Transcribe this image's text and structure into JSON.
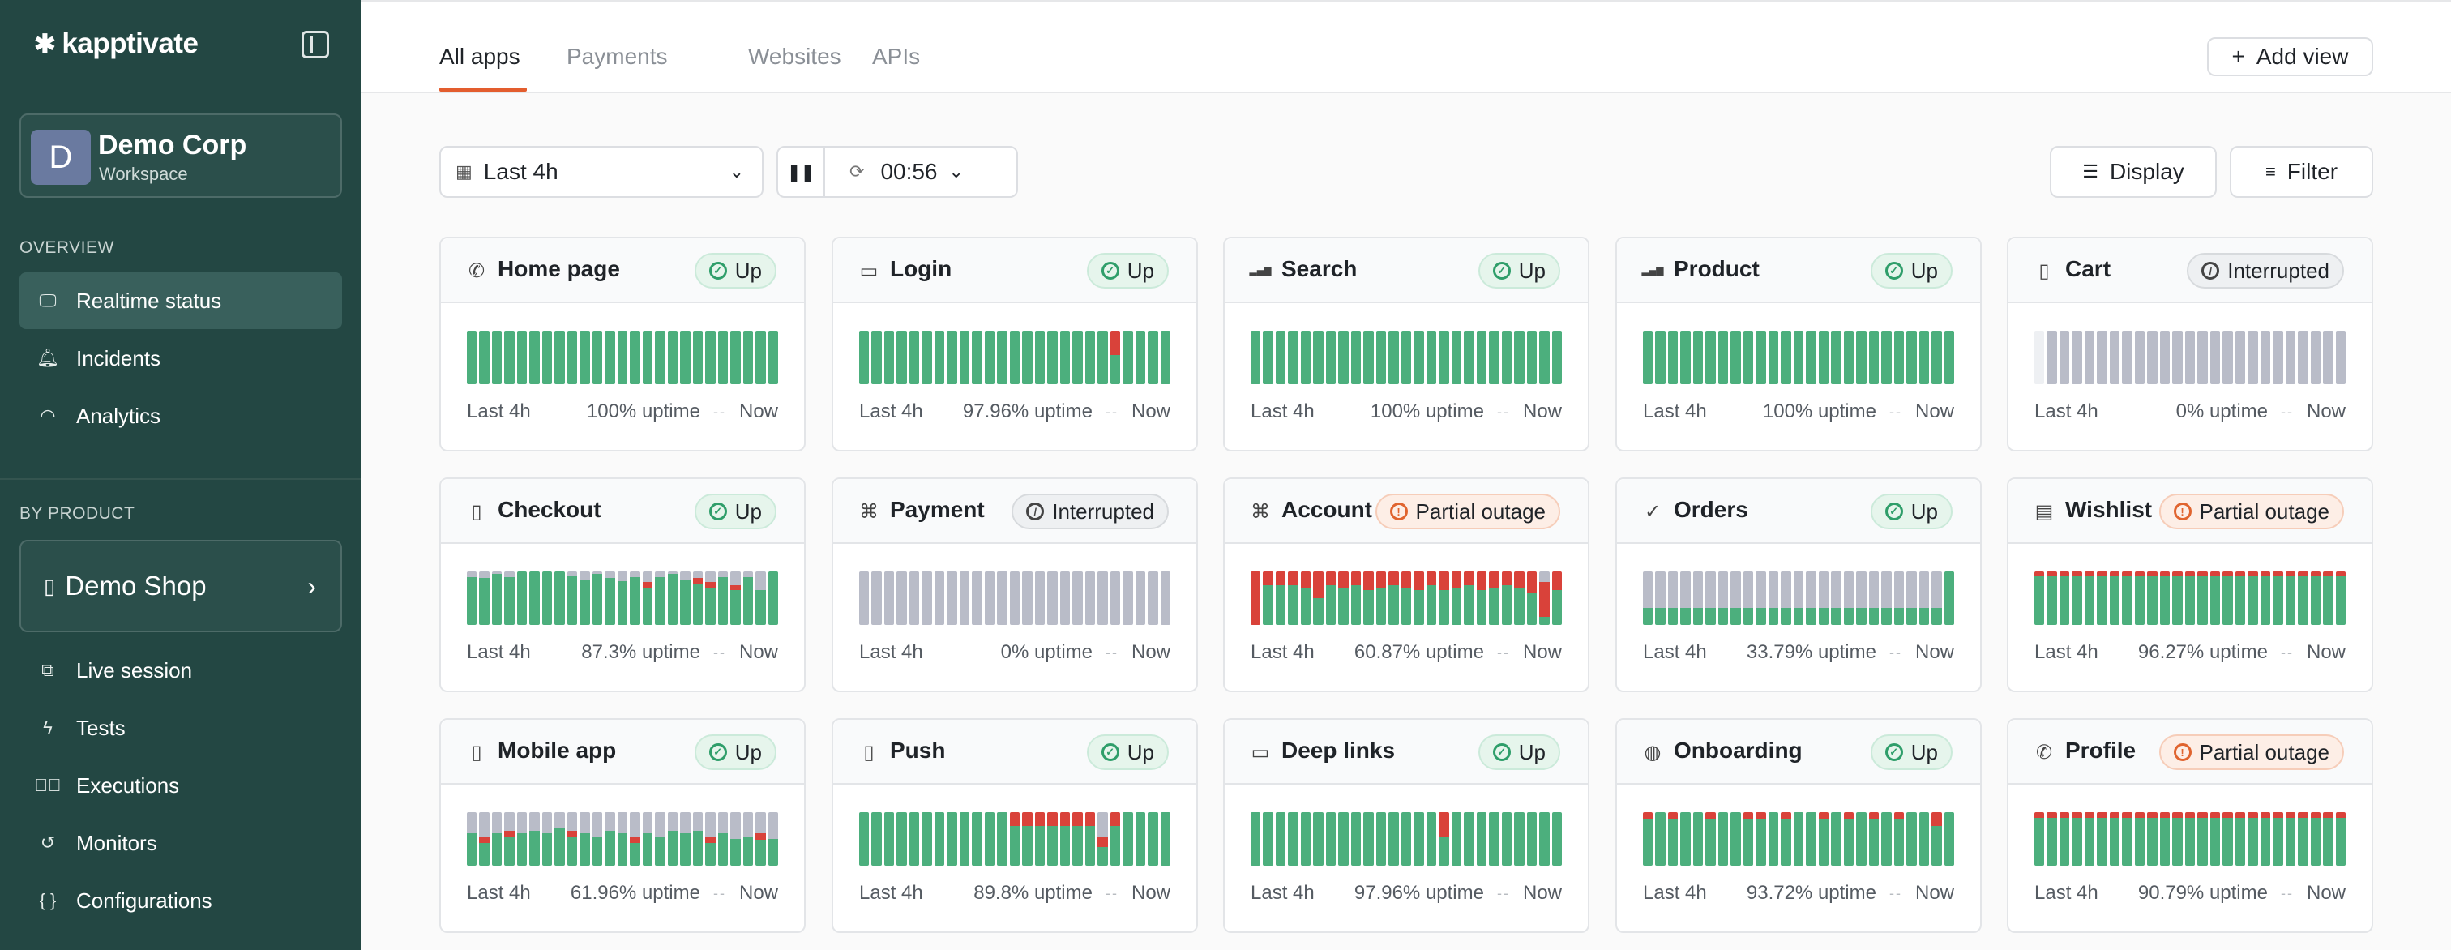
{
  "sidebar": {
    "brand": "kapptivate",
    "workspace": {
      "initial": "D",
      "name": "Demo Corp",
      "subtitle": "Workspace"
    },
    "overview_label": "OVERVIEW",
    "overview_items": [
      {
        "label": "Realtime status",
        "icon": "monitor-icon",
        "active": true
      },
      {
        "label": "Incidents",
        "icon": "bell-icon",
        "active": false
      },
      {
        "label": "Analytics",
        "icon": "gauge-icon",
        "active": false
      }
    ],
    "by_product_label": "BY PRODUCT",
    "product": {
      "name": "Demo Shop",
      "icon": "mobile-icon"
    },
    "product_items": [
      {
        "label": "Live session",
        "icon": "screens-icon"
      },
      {
        "label": "Tests",
        "icon": "bolt-icon"
      },
      {
        "label": "Executions",
        "icon": "check-circle-icon"
      },
      {
        "label": "Monitors",
        "icon": "history-icon"
      },
      {
        "label": "Configurations",
        "icon": "braces-icon"
      }
    ]
  },
  "header": {
    "tabs": [
      "All apps",
      "Payments",
      "Websites",
      "APIs"
    ],
    "active_tab": 0,
    "add_view_label": "Add view"
  },
  "toolbar": {
    "range_label": "Last 4h",
    "timer": "00:56",
    "display_label": "Display",
    "filter_label": "Filter"
  },
  "colors": {
    "up": "#4caf7d",
    "down": "#d9423a",
    "unknown": "#b9bcc8",
    "accent": "#e35d2e",
    "sidebar": "#234743"
  },
  "cards": [
    {
      "title": "Home page",
      "icon": "phone-icon",
      "status": "Up",
      "kind": "up",
      "range": "Last 4h",
      "uptime": "100% uptime",
      "now": "Now",
      "bars": "all-green"
    },
    {
      "title": "Login",
      "icon": "desktop-icon",
      "status": "Up",
      "kind": "up",
      "range": "Last 4h",
      "uptime": "97.96% uptime",
      "now": "Now",
      "bars": "login"
    },
    {
      "title": "Search",
      "icon": "signal-icon",
      "status": "Up",
      "kind": "up",
      "range": "Last 4h",
      "uptime": "100% uptime",
      "now": "Now",
      "bars": "all-green"
    },
    {
      "title": "Product",
      "icon": "signal-icon",
      "status": "Up",
      "kind": "up",
      "range": "Last 4h",
      "uptime": "100% uptime",
      "now": "Now",
      "bars": "all-green"
    },
    {
      "title": "Cart",
      "icon": "mobile-icon",
      "status": "Interrupted",
      "kind": "int",
      "range": "Last 4h",
      "uptime": "0% uptime",
      "now": "Now",
      "bars": "cart"
    },
    {
      "title": "Checkout",
      "icon": "mobile-icon",
      "status": "Up",
      "kind": "up",
      "range": "Last 4h",
      "uptime": "87.3% uptime",
      "now": "Now",
      "bars": "checkout"
    },
    {
      "title": "Payment",
      "icon": "command-icon",
      "status": "Interrupted",
      "kind": "int",
      "range": "Last 4h",
      "uptime": "0% uptime",
      "now": "Now",
      "bars": "all-grey"
    },
    {
      "title": "Account",
      "icon": "command-icon",
      "status": "Partial outage",
      "kind": "part",
      "range": "Last 4h",
      "uptime": "60.87% uptime",
      "now": "Now",
      "bars": "account"
    },
    {
      "title": "Orders",
      "icon": "check-circle-icon",
      "status": "Up",
      "kind": "up",
      "range": "Last 4h",
      "uptime": "33.79% uptime",
      "now": "Now",
      "bars": "orders"
    },
    {
      "title": "Wishlist",
      "icon": "list-icon",
      "status": "Partial outage",
      "kind": "part",
      "range": "Last 4h",
      "uptime": "96.27% uptime",
      "now": "Now",
      "bars": "wishlist"
    },
    {
      "title": "Mobile app",
      "icon": "mobile-icon",
      "status": "Up",
      "kind": "up",
      "range": "Last 4h",
      "uptime": "61.96% uptime",
      "now": "Now",
      "bars": "mobileapp"
    },
    {
      "title": "Push",
      "icon": "mobile-icon",
      "status": "Up",
      "kind": "up",
      "range": "Last 4h",
      "uptime": "89.8% uptime",
      "now": "Now",
      "bars": "push"
    },
    {
      "title": "Deep links",
      "icon": "desktop-icon",
      "status": "Up",
      "kind": "up",
      "range": "Last 4h",
      "uptime": "97.96% uptime",
      "now": "Now",
      "bars": "deeplinks"
    },
    {
      "title": "Onboarding",
      "icon": "globe-icon",
      "status": "Up",
      "kind": "up",
      "range": "Last 4h",
      "uptime": "93.72% uptime",
      "now": "Now",
      "bars": "onboarding"
    },
    {
      "title": "Profile",
      "icon": "phone-icon",
      "status": "Partial outage",
      "kind": "part",
      "range": "Last 4h",
      "uptime": "90.79% uptime",
      "now": "Now",
      "bars": "profile"
    }
  ]
}
